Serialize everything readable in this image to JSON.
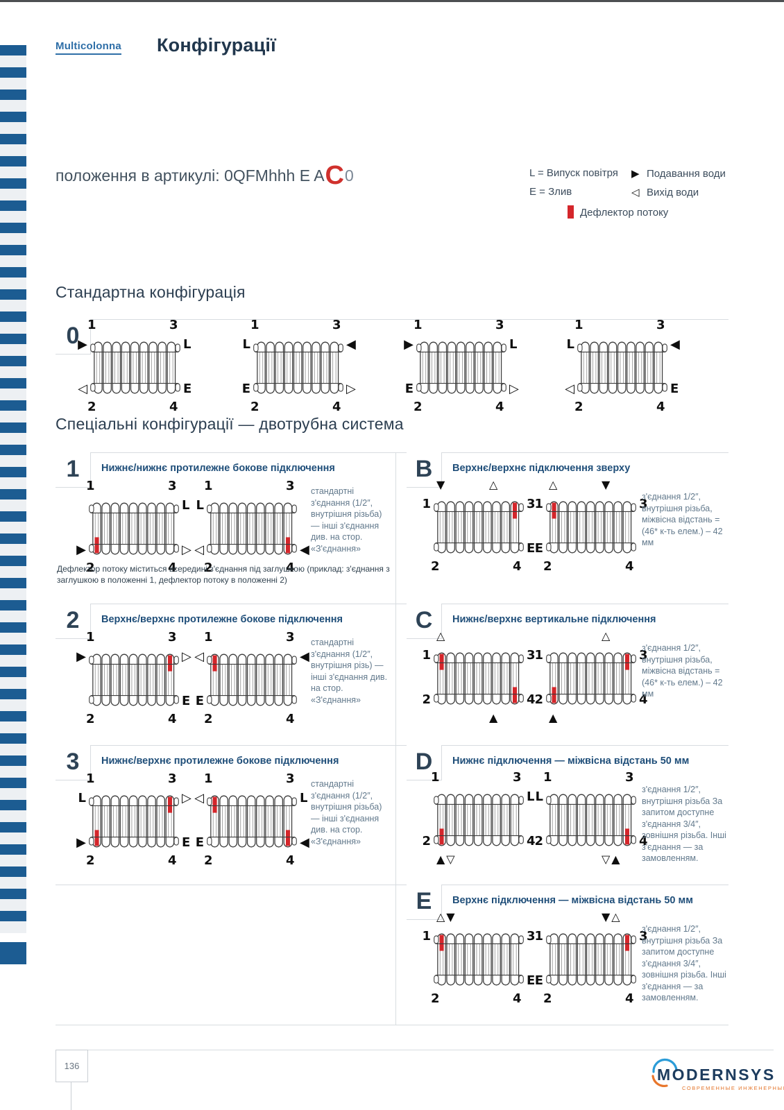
{
  "header": {
    "brand": "Multicolonna",
    "title": "Конфігурації"
  },
  "article": {
    "prefix": "положення в артикулі: 0QFMhhh E A",
    "highlight": "C",
    "suffix": "0"
  },
  "legend": {
    "l_label": "L = Випуск повітря",
    "e_label": "E = Злив",
    "supply_icon": "▶",
    "supply_label": "Подавання води",
    "outlet_icon": "◁",
    "outlet_label": "Вихід води",
    "deflector_label": "Дефлектор потоку"
  },
  "colors": {
    "accent_red": "#d4262b",
    "stripe_blue": "#1c5c92",
    "title_navy": "#21374d",
    "row_title_blue": "#1f4e79"
  },
  "standard": {
    "heading": "Стандартна конфігурація",
    "id": "0",
    "radiators": [
      {
        "slots": {
          "num_tl": "1",
          "num_tr": "3",
          "num_bl": "2",
          "num_br": "4",
          "side_tl": "▶",
          "side_tr": "L",
          "side_bl": "◁",
          "side_br": "E"
        },
        "deflectors": []
      },
      {
        "slots": {
          "num_tl": "1",
          "num_tr": "3",
          "num_bl": "2",
          "num_br": "4",
          "side_tl": "L",
          "side_tr": "◀",
          "side_bl": "E",
          "side_br": "▷"
        },
        "deflectors": []
      },
      {
        "slots": {
          "num_tl": "1",
          "num_tr": "3",
          "num_bl": "2",
          "num_br": "4",
          "side_tl": "▶",
          "side_tr": "L",
          "side_bl": "E",
          "side_br": "▷"
        },
        "deflectors": []
      },
      {
        "slots": {
          "num_tl": "1",
          "num_tr": "3",
          "num_bl": "2",
          "num_br": "4",
          "side_tl": "L",
          "side_tr": "◀",
          "side_bl": "◁",
          "side_br": "E"
        },
        "deflectors": []
      }
    ]
  },
  "special": {
    "heading": "Спеціальні конфігурації — двотрубна система",
    "left": [
      {
        "id": "1",
        "title": "Нижнє/нижнє протилежне бокове підключення",
        "note": "стандартні з'єднання (1/2″, внутрішня різьба) — інші з'єднання див. на стор. «З'єднання»",
        "footnote": "Дефлектор потоку міститься всередині з'єднання під заглушкою (приклад: з'єднання з заглушкою в положенні 1, дефлектор потоку в положенні 2)",
        "radiators": [
          {
            "slots": {
              "num_tl": "1",
              "num_tr": "3",
              "num_bl": "2",
              "num_br": "4",
              "side_tr": "L",
              "side_bl": "▶",
              "side_br": "▷"
            },
            "deflectors": [
              "bl"
            ]
          },
          {
            "slots": {
              "num_tl": "1",
              "num_tr": "3",
              "num_bl": "2",
              "num_br": "4",
              "side_tl": "L",
              "side_bl": "◁",
              "side_br": "◀"
            },
            "deflectors": [
              "br"
            ]
          }
        ]
      },
      {
        "id": "2",
        "title": "Верхнє/верхнє протилежне бокове підключення",
        "note": "стандартні з'єднання (1/2″, внутрішня різь) — інші з'єднання див. на стор. «З'єднання»",
        "footnote": "",
        "radiators": [
          {
            "slots": {
              "num_tl": "1",
              "num_tr": "3",
              "num_bl": "2",
              "num_br": "4",
              "side_tl": "▶",
              "side_tr": "▷",
              "side_br": "E"
            },
            "deflectors": [
              "tr"
            ]
          },
          {
            "slots": {
              "num_tl": "1",
              "num_tr": "3",
              "num_bl": "2",
              "num_br": "4",
              "side_tl": "◁",
              "side_tr": "◀",
              "side_bl": "E"
            },
            "deflectors": [
              "tl"
            ]
          }
        ]
      },
      {
        "id": "3",
        "title": "Нижнє/верхнє протилежне бокове підключення",
        "note": "стандартні з'єднання (1/2″, внутрішня різьба) — інші з'єднання див. на стор. «З'єднання»",
        "footnote": "",
        "radiators": [
          {
            "slots": {
              "num_tl": "1",
              "num_tr": "3",
              "num_bl": "2",
              "num_br": "4",
              "side_tl": "L",
              "side_tr": "▷",
              "side_bl": "▶",
              "side_br": "E"
            },
            "deflectors": [
              "tr",
              "bl"
            ]
          },
          {
            "slots": {
              "num_tl": "1",
              "num_tr": "3",
              "num_bl": "2",
              "num_br": "4",
              "side_tl": "◁",
              "side_tr": "L",
              "side_bl": "E",
              "side_br": "◀"
            },
            "deflectors": [
              "tl",
              "br"
            ]
          }
        ]
      }
    ],
    "right": [
      {
        "id": "B",
        "title": "Верхнє/верхнє підключення зверху",
        "note": "з'єднання 1/2″, внутрішня різьба, міжвісна відстань = (46* к-ть елем.) – 42 мм",
        "radiators": [
          {
            "slots": {
              "side_tl": "1",
              "side_tr": "3",
              "num_bl": "2",
              "num_br": "4",
              "side_br": "E",
              "above_l": "▼",
              "above_r": "△"
            },
            "deflectors": [
              "tr"
            ]
          },
          {
            "slots": {
              "side_tl": "1",
              "side_tr": "3",
              "num_bl": "2",
              "num_br": "4",
              "side_bl": "E",
              "above_l": "△",
              "above_r": "▼"
            },
            "deflectors": [
              "tl"
            ]
          }
        ]
      },
      {
        "id": "C",
        "title": "Нижнє/верхнє вертикальне підключення",
        "note": "з'єднання 1/2″, внутрішня різьба, міжвісна відстань = (46* к-ть елем.) – 42 мм",
        "radiators": [
          {
            "slots": {
              "side_tl": "1",
              "side_tr": "3",
              "side_bl": "2",
              "side_br": "4",
              "above_l": "△",
              "below_r": "▲"
            },
            "deflectors": [
              "tl",
              "br"
            ]
          },
          {
            "slots": {
              "side_tl": "1",
              "side_tr": "3",
              "side_bl": "2",
              "side_br": "4",
              "above_r": "△",
              "below_l": "▲"
            },
            "deflectors": [
              "tr",
              "bl"
            ]
          }
        ]
      },
      {
        "id": "D",
        "title": "Нижнє підключення — міжвісна відстань 50 мм",
        "note": "з'єднання 1/2″, внутрішня різьба За запитом доступне з'єднання 3/4″, зовнішня різьба. Інші з'єднання — за замовленням.",
        "radiators": [
          {
            "slots": {
              "num_tl": "1",
              "num_tr": "3",
              "side_tr": "L",
              "side_bl": "2",
              "side_br": "4",
              "below_l": "▲▽"
            },
            "deflectors": [
              "bl"
            ]
          },
          {
            "slots": {
              "num_tl": "1",
              "num_tr": "3",
              "side_tl": "L",
              "side_bl": "2",
              "side_br": "4",
              "below_r": "▽▲"
            },
            "deflectors": [
              "br"
            ]
          }
        ]
      },
      {
        "id": "E",
        "title": "Верхнє підключення — міжвісна відстань 50 мм",
        "note": "з'єднання 1/2″, внутрішня різьба За запитом доступне з'єднання 3/4″, зовнішня різьба. Інші з'єднання — за замовленням.",
        "radiators": [
          {
            "slots": {
              "side_tl": "1",
              "side_tr": "3",
              "num_bl": "2",
              "num_br": "4",
              "side_br": "E",
              "above_l": "△▼"
            },
            "deflectors": [
              "tl"
            ]
          },
          {
            "slots": {
              "side_tl": "1",
              "side_tr": "3",
              "num_bl": "2",
              "num_br": "4",
              "side_bl": "E",
              "above_r": "▼△"
            },
            "deflectors": [
              "tr"
            ]
          }
        ]
      }
    ]
  },
  "footer": {
    "page_number": "136",
    "logo_text": "MODERNSYS",
    "logo_subtitle": "СОВРЕМЕННЫЕ ИНЖЕНЕРНЫЕ СИСТЕМЫ"
  }
}
